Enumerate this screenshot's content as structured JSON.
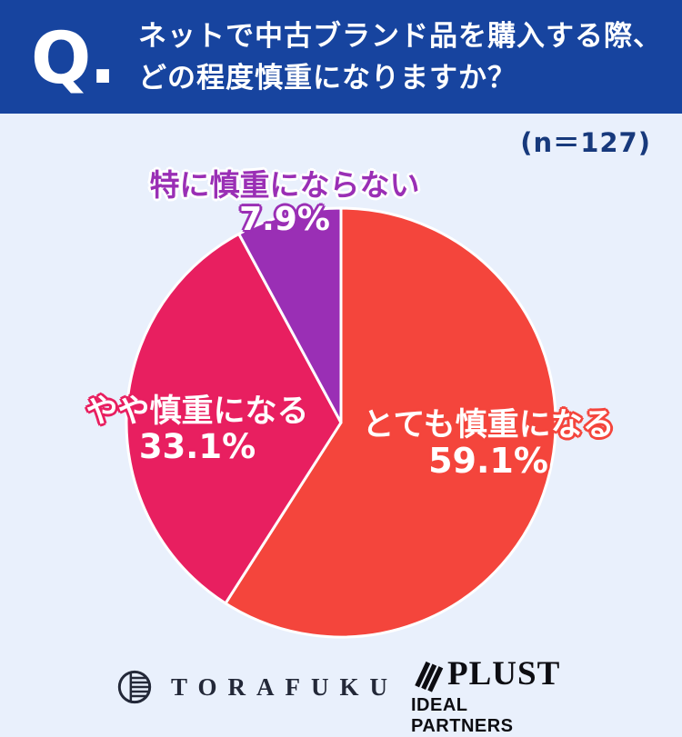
{
  "header": {
    "q_label": "Q.",
    "title_line1": "ネットで中古ブランド品を購入する際、",
    "title_line2": "どの程度慎重になりますか？"
  },
  "sample_size_label": "(n＝127)",
  "chart_data": {
    "type": "pie",
    "title": "ネットで中古ブランド品を購入する際、どの程度慎重になりますか？",
    "sample_size": 127,
    "start_angle_deg": 0,
    "direction": "clockwise",
    "separator_color": "#ffffff",
    "slices": [
      {
        "label": "とても慎重になる",
        "value": 59.1,
        "percent_label": "59.1%",
        "color": "#f4453c"
      },
      {
        "label": "やや慎重になる",
        "value": 33.1,
        "percent_label": "33.1%",
        "color": "#e81f60"
      },
      {
        "label": "特に慎重にならない",
        "value": 7.9,
        "percent_label": "7.9%",
        "color": "#9a2fb5"
      }
    ]
  },
  "footer": {
    "torafuku_logo_text": "TORAFUKU",
    "plust_logo_text": "PLUST",
    "plust_sub_text": "IDEAL PARTNERS"
  },
  "colors": {
    "header_bg": "#17449f",
    "page_bg": "#e9f0fc",
    "navy": "#17397c",
    "red": "#f4453c",
    "pink": "#e81f60",
    "purple": "#9a2fb5",
    "logo_dark": "#232838",
    "logo_black": "#0d0d12"
  }
}
